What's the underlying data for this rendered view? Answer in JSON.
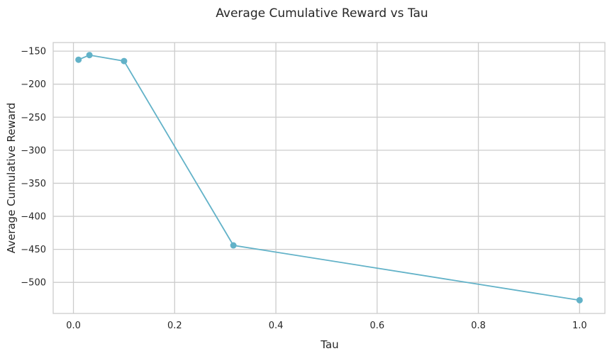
{
  "chart_data": {
    "type": "line",
    "title": "Average Cumulative Reward vs Tau",
    "xlabel": "Tau",
    "ylabel": "Average Cumulative Reward",
    "xlim": [
      -0.04,
      1.05
    ],
    "ylim": [
      -547,
      -137
    ],
    "xticks": [
      0.0,
      0.2,
      0.4,
      0.6,
      0.8,
      1.0
    ],
    "xtick_labels": [
      "0.0",
      "0.2",
      "0.4",
      "0.6",
      "0.8",
      "1.0"
    ],
    "yticks": [
      -150,
      -200,
      -250,
      -300,
      -350,
      -400,
      -450,
      -500
    ],
    "ytick_labels": [
      "−150",
      "−200",
      "−250",
      "−300",
      "−350",
      "−400",
      "−450",
      "−500"
    ],
    "grid": true,
    "series": [
      {
        "color": "#62b2c8",
        "marker": "circle",
        "x": [
          0.01,
          0.0316,
          0.1,
          0.316,
          1.0
        ],
        "y": [
          -163,
          -156,
          -165,
          -444,
          -527
        ]
      }
    ]
  }
}
